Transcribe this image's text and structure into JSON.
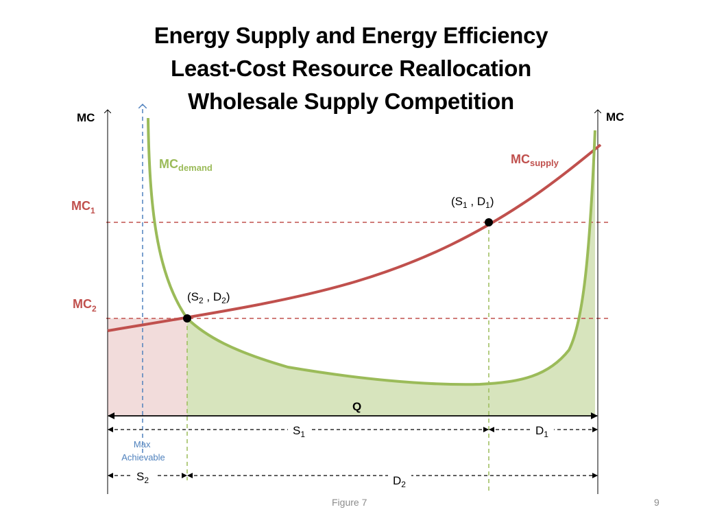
{
  "slide": {
    "title_lines": [
      "Energy Supply and Energy Efficiency",
      "Least-Cost Resource Reallocation",
      "Wholesale Supply Competition"
    ],
    "footer": "Figure 7",
    "page_number": "9"
  },
  "diagram": {
    "axes": {
      "left_axis_label": "MC",
      "right_axis_label": "MC",
      "quantity_label": "Q"
    },
    "levels": {
      "mc1_label": "MC",
      "mc1_sub": "1",
      "mc2_label": "MC",
      "mc2_sub": "2"
    },
    "curves": {
      "demand_label": "MC",
      "demand_sub": "demand",
      "supply_label": "MC",
      "supply_sub": "supply"
    },
    "points": {
      "p1": {
        "a": "S",
        "a_sub": "1",
        "sep": " , ",
        "b": "D",
        "b_sub": "1"
      },
      "p2": {
        "a": "S",
        "a_sub": "2",
        "sep": " , ",
        "b": "D",
        "b_sub": "2"
      }
    },
    "max_achievable": [
      "Max",
      "Achievable"
    ],
    "spans": {
      "s1": {
        "label": "S",
        "sub": "1"
      },
      "d1": {
        "label": "D",
        "sub": "1"
      },
      "s2": {
        "label": "S",
        "sub": "2"
      },
      "d2": {
        "label": "D",
        "sub": "2"
      }
    },
    "colors": {
      "supply": "#c0504d",
      "demand": "#9bbb59",
      "max_line": "#4f81bd",
      "supply_fill": "#f2dcdb",
      "demand_fill": "#d7e4bd"
    }
  }
}
